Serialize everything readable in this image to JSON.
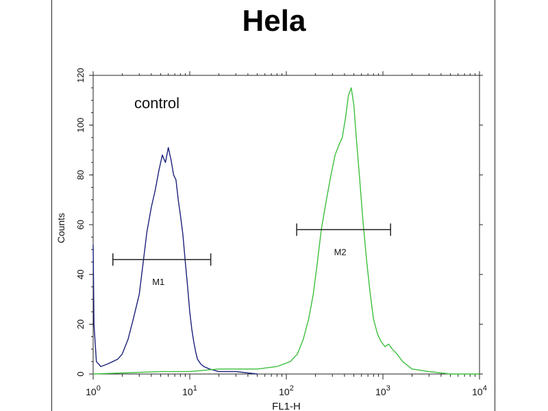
{
  "chart_data": {
    "type": "line",
    "title": "Hela",
    "xlabel": "FL1-H",
    "ylabel": "Counts",
    "x_scale": "log",
    "xlim": [
      1,
      10000
    ],
    "ylim": [
      0,
      120
    ],
    "y_ticks": [
      "0",
      "20",
      "40",
      "60",
      "80",
      "100",
      "120"
    ],
    "x_ticks": [
      {
        "base": "10",
        "exp": "0"
      },
      {
        "base": "10",
        "exp": "1"
      },
      {
        "base": "10",
        "exp": "2"
      },
      {
        "base": "10",
        "exp": "3"
      },
      {
        "base": "10",
        "exp": "4"
      }
    ],
    "annotations": {
      "control": "control"
    },
    "markers": [
      {
        "label": "M1",
        "x_start": 1.6,
        "x_end": 16.5,
        "y": 46
      },
      {
        "label": "M2",
        "x_start": 128,
        "x_end": 1200,
        "y": 58
      }
    ],
    "series": [
      {
        "color": "#1a1f7a",
        "x": [
          1.0,
          1.02,
          1.08,
          1.2,
          1.4,
          1.6,
          1.8,
          2.0,
          2.3,
          2.6,
          3.0,
          3.3,
          3.6,
          4.0,
          4.4,
          4.8,
          5.2,
          5.6,
          6.0,
          6.4,
          6.8,
          7.2,
          7.6,
          8.0,
          8.5,
          9.0,
          9.5,
          10.0,
          10.5,
          11.0,
          11.5,
          12.0,
          13.0,
          14.0,
          16.0,
          20.0,
          30.0,
          50.0
        ],
        "y": [
          52,
          20,
          5,
          3,
          4,
          5,
          6,
          8,
          14,
          22,
          32,
          45,
          57,
          67,
          74,
          82,
          88,
          85,
          91,
          86,
          80,
          78,
          70,
          64,
          56,
          45,
          35,
          25,
          18,
          13,
          9,
          6,
          4,
          3,
          2,
          1,
          1,
          0
        ]
      },
      {
        "color": "#3cbf3c",
        "x": [
          1.0,
          5.0,
          10.0,
          20.0,
          50.0,
          80.0,
          110.0,
          130.0,
          150.0,
          170.0,
          190.0,
          210.0,
          230.0,
          260.0,
          290.0,
          320.0,
          350.0,
          380.0,
          410.0,
          440.0,
          470.0,
          500.0,
          530.0,
          570.0,
          620.0,
          680.0,
          740.0,
          800.0,
          880.0,
          960.0,
          1050.0,
          1150.0,
          1250.0,
          1400.0,
          1600.0,
          2000.0,
          3000.0,
          5000.0,
          10000.0
        ],
        "y": [
          0,
          1,
          1,
          2,
          2,
          3,
          5,
          8,
          14,
          22,
          32,
          45,
          58,
          70,
          80,
          88,
          92,
          95,
          103,
          112,
          115,
          108,
          95,
          80,
          62,
          45,
          32,
          22,
          16,
          13,
          11,
          12,
          10,
          8,
          5,
          2,
          1,
          0,
          0
        ]
      }
    ]
  }
}
